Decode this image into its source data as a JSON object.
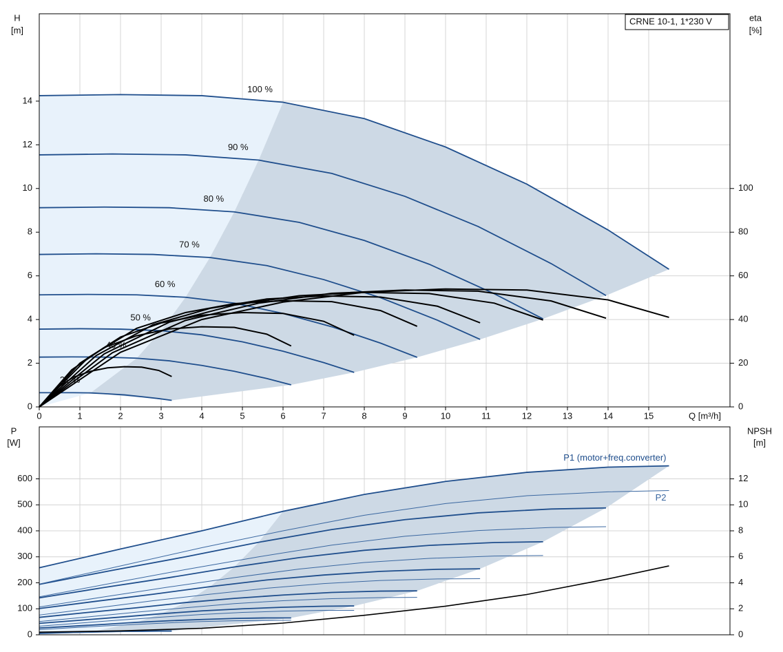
{
  "chart_data": [
    {
      "type": "line",
      "title": "CRNE 10-1, 1*230 V",
      "x_label": "Q [m³/h]",
      "y_label": "H",
      "y_unit": "[m]",
      "y2_label": "eta",
      "y2_unit": "[%]",
      "xlim": [
        0,
        17
      ],
      "xticks": [
        0,
        1,
        2,
        3,
        4,
        5,
        6,
        7,
        8,
        9,
        10,
        11,
        12,
        13,
        14,
        15
      ],
      "ylim": [
        0,
        18
      ],
      "yticks": [
        0,
        2,
        4,
        6,
        8,
        10,
        12,
        14
      ],
      "y2lim": [
        0,
        180
      ],
      "y2ticks": [
        0,
        20,
        40,
        60,
        80,
        100
      ],
      "grid": true,
      "series": [
        {
          "name": "100 %",
          "color": "#1f4e8c",
          "x": [
            0,
            2,
            4,
            6,
            8,
            10,
            12,
            14,
            15.5
          ],
          "values": [
            14.25,
            14.3,
            14.25,
            13.95,
            13.2,
            11.9,
            10.2,
            8.1,
            6.3
          ]
        },
        {
          "name": "90 %",
          "color": "#1f4e8c",
          "x": [
            0,
            1.8,
            3.6,
            5.4,
            7.2,
            9,
            10.8,
            12.6,
            13.95
          ],
          "values": [
            11.54,
            11.58,
            11.54,
            11.3,
            10.69,
            9.64,
            8.26,
            6.56,
            5.1
          ]
        },
        {
          "name": "80 %",
          "color": "#1f4e8c",
          "x": [
            0,
            1.6,
            3.2,
            4.8,
            6.4,
            8,
            9.6,
            11.2,
            12.4
          ],
          "values": [
            9.12,
            9.15,
            9.12,
            8.93,
            8.45,
            7.62,
            6.53,
            5.18,
            4.03
          ]
        },
        {
          "name": "70 %",
          "color": "#1f4e8c",
          "x": [
            0,
            1.4,
            2.8,
            4.2,
            5.6,
            7,
            8.4,
            9.8,
            10.85
          ],
          "values": [
            6.98,
            7.01,
            6.98,
            6.84,
            6.47,
            5.83,
            5,
            3.97,
            3.09
          ]
        },
        {
          "name": "60 %",
          "color": "#1f4e8c",
          "x": [
            0,
            1.2,
            2.4,
            3.6,
            4.8,
            6,
            7.2,
            8.4,
            9.3
          ],
          "values": [
            5.13,
            5.15,
            5.13,
            5.02,
            4.75,
            4.28,
            3.67,
            2.92,
            2.27
          ]
        },
        {
          "name": "50 %",
          "color": "#1f4e8c",
          "x": [
            0,
            1,
            2,
            3,
            4,
            5,
            6,
            7,
            7.75
          ],
          "values": [
            3.56,
            3.58,
            3.56,
            3.49,
            3.3,
            2.98,
            2.55,
            2.03,
            1.58
          ]
        },
        {
          "name": "40 %",
          "color": "#1f4e8c",
          "x": [
            0,
            0.8,
            1.6,
            2.4,
            3.2,
            4,
            4.8,
            5.6,
            6.2
          ],
          "values": [
            2.28,
            2.29,
            2.28,
            2.23,
            2.11,
            1.9,
            1.63,
            1.3,
            1.01
          ]
        },
        {
          "name": "21 %",
          "color": "#1f4e8c",
          "x": [
            0,
            0.42,
            0.84,
            1.26,
            1.68,
            2.1,
            2.52,
            2.94,
            3.26
          ],
          "values": [
            0.65,
            0.65,
            0.65,
            0.64,
            0.6,
            0.55,
            0.47,
            0.38,
            0.3
          ]
        },
        {
          "axis": "y2",
          "color": "#000000",
          "x": [
            0,
            2,
            4,
            6,
            8,
            10,
            12,
            14,
            15.5
          ],
          "values": [
            0,
            25,
            40,
            48,
            52.5,
            54,
            53.5,
            49,
            41
          ]
        },
        {
          "axis": "y2",
          "color": "#000000",
          "x": [
            0,
            1.8,
            3.6,
            5.4,
            7.2,
            9,
            10.8,
            12.6,
            13.95
          ],
          "values": [
            0,
            24.8,
            39.6,
            47.5,
            52,
            53.5,
            53,
            48.5,
            40.6
          ]
        },
        {
          "axis": "y2",
          "color": "#000000",
          "x": [
            0,
            1.6,
            3.2,
            4.8,
            6.4,
            8,
            9.6,
            11.2,
            12.4
          ],
          "values": [
            0,
            24.3,
            38.8,
            46.6,
            50.9,
            52.4,
            51.9,
            47.5,
            39.8
          ]
        },
        {
          "axis": "y2",
          "color": "#000000",
          "x": [
            0,
            1.4,
            2.8,
            4.2,
            5.6,
            7,
            8.4,
            9.8,
            10.85
          ],
          "values": [
            0,
            23.5,
            37.6,
            45.1,
            49.4,
            50.8,
            50.3,
            46.1,
            38.5
          ]
        },
        {
          "axis": "y2",
          "color": "#000000",
          "x": [
            0,
            1.2,
            2.4,
            3.6,
            4.8,
            6,
            7.2,
            8.4,
            9.3
          ],
          "values": [
            0,
            22.5,
            36,
            43.2,
            47.3,
            48.6,
            48.2,
            44.1,
            36.9
          ]
        },
        {
          "axis": "y2",
          "color": "#000000",
          "x": [
            0,
            1,
            2,
            3,
            4,
            5,
            6,
            7,
            7.75
          ],
          "values": [
            0,
            20,
            32,
            38.4,
            42,
            43.2,
            42.8,
            39.2,
            32.8
          ]
        },
        {
          "axis": "y2",
          "color": "#000000",
          "x": [
            0,
            0.8,
            1.6,
            2.4,
            3.2,
            4,
            4.8,
            5.6,
            6.2
          ],
          "values": [
            0,
            17,
            27.2,
            32.6,
            35.7,
            36.7,
            36.4,
            33.3,
            27.9
          ]
        },
        {
          "axis": "y2",
          "color": "#000000",
          "x": [
            0,
            0.42,
            0.84,
            1.26,
            1.68,
            2.1,
            2.52,
            2.94,
            3.26
          ],
          "values": [
            0,
            8.5,
            13.6,
            16.3,
            17.9,
            18.4,
            18.2,
            16.7,
            13.9
          ]
        }
      ]
    },
    {
      "type": "line",
      "y_label": "P",
      "y_unit": "[W]",
      "y2_label": "NPSH",
      "y2_unit": "[m]",
      "ylim": [
        0,
        800
      ],
      "yticks": [
        0,
        100,
        200,
        300,
        400,
        500,
        600
      ],
      "y2lim": [
        0,
        16
      ],
      "y2ticks": [
        0,
        2,
        4,
        6,
        8,
        10,
        12
      ],
      "grid": true,
      "series": [
        {
          "name": "P1 (motor+freq.converter)",
          "color": "#1f4e8c",
          "x": [
            0,
            2,
            4,
            6,
            8,
            10,
            12,
            14,
            15.5
          ],
          "values": [
            258,
            330,
            400,
            475,
            540,
            590,
            625,
            645,
            650
          ]
        },
        {
          "color": "#1f4e8c",
          "x": [
            0,
            1.8,
            3.6,
            5.4,
            7.2,
            9,
            10.8,
            12.6,
            13.95
          ],
          "values": [
            194,
            248,
            300,
            356,
            405,
            443,
            469,
            484,
            488
          ]
        },
        {
          "color": "#1f4e8c",
          "x": [
            0,
            1.6,
            3.2,
            4.8,
            6.4,
            8,
            9.6,
            11.2,
            12.4
          ],
          "values": [
            142,
            182,
            220,
            261,
            297,
            325,
            344,
            355,
            358
          ]
        },
        {
          "color": "#1f4e8c",
          "x": [
            0,
            1.4,
            2.8,
            4.2,
            5.6,
            7,
            8.4,
            9.8,
            10.85
          ],
          "values": [
            101,
            129,
            156,
            185,
            211,
            230,
            244,
            252,
            254
          ]
        },
        {
          "color": "#1f4e8c",
          "x": [
            0,
            1.2,
            2.4,
            3.6,
            4.8,
            6,
            7.2,
            8.4,
            9.3
          ],
          "values": [
            67,
            86,
            104,
            124,
            140,
            153,
            163,
            168,
            169
          ]
        },
        {
          "color": "#1f4e8c",
          "x": [
            0,
            1,
            2,
            3,
            4,
            5,
            6,
            7,
            7.75
          ],
          "values": [
            44,
            56,
            68,
            81,
            92,
            100,
            106,
            110,
            111
          ]
        },
        {
          "color": "#1f4e8c",
          "x": [
            0,
            0.8,
            1.6,
            2.4,
            3.2,
            4,
            4.8,
            5.6,
            6.2
          ],
          "values": [
            26,
            33,
            40,
            48,
            54,
            59,
            63,
            65,
            65
          ]
        },
        {
          "color": "#1f4e8c",
          "x": [
            0,
            0.42,
            0.84,
            1.26,
            1.68,
            2.1,
            2.52,
            2.94,
            3.26
          ],
          "values": [
            6,
            8,
            9,
            11,
            12,
            14,
            14,
            15,
            15
          ]
        },
        {
          "name": "P2",
          "color": "#3a67a0",
          "x": [
            0,
            2,
            4,
            6,
            8,
            10,
            12,
            14,
            15.5
          ],
          "values": [
            195,
            265,
            335,
            400,
            460,
            505,
            535,
            550,
            555
          ]
        },
        {
          "color": "#3a67a0",
          "x": [
            0,
            1.8,
            3.6,
            5.4,
            7.2,
            9,
            10.8,
            12.6,
            13.95
          ],
          "values": [
            146,
            199,
            251,
            300,
            345,
            379,
            401,
            413,
            416
          ]
        },
        {
          "color": "#3a67a0",
          "x": [
            0,
            1.6,
            3.2,
            4.8,
            6.4,
            8,
            9.6,
            11.2,
            12.4
          ],
          "values": [
            107,
            146,
            184,
            220,
            253,
            278,
            294,
            303,
            305
          ]
        },
        {
          "color": "#3a67a0",
          "x": [
            0,
            1.4,
            2.8,
            4.2,
            5.6,
            7,
            8.4,
            9.8,
            10.85
          ],
          "values": [
            76,
            103,
            131,
            156,
            179,
            197,
            209,
            215,
            216
          ]
        },
        {
          "color": "#3a67a0",
          "x": [
            0,
            1.2,
            2.4,
            3.6,
            4.8,
            6,
            7.2,
            8.4,
            9.3
          ],
          "values": [
            51,
            69,
            87,
            104,
            120,
            131,
            139,
            143,
            144
          ]
        },
        {
          "color": "#3a67a0",
          "x": [
            0,
            1,
            2,
            3,
            4,
            5,
            6,
            7,
            7.75
          ],
          "values": [
            33,
            45,
            57,
            68,
            78,
            86,
            91,
            94,
            94
          ]
        },
        {
          "color": "#3a67a0",
          "x": [
            0,
            0.8,
            1.6,
            2.4,
            3.2,
            4,
            4.8,
            5.6,
            6.2
          ],
          "values": [
            20,
            27,
            34,
            40,
            46,
            51,
            54,
            55,
            56
          ]
        },
        {
          "color": "#3a67a0",
          "x": [
            0,
            0.42,
            0.84,
            1.26,
            1.68,
            2.1,
            2.52,
            2.94,
            3.26
          ],
          "values": [
            4,
            6,
            8,
            9,
            11,
            12,
            12,
            13,
            13
          ]
        },
        {
          "axis": "y2",
          "color": "#000000",
          "x": [
            0,
            2,
            4,
            6,
            8,
            10,
            12,
            14,
            15.5
          ],
          "values": [
            0.2,
            0.3,
            0.5,
            0.9,
            1.5,
            2.2,
            3.1,
            4.3,
            5.3
          ]
        }
      ]
    }
  ]
}
